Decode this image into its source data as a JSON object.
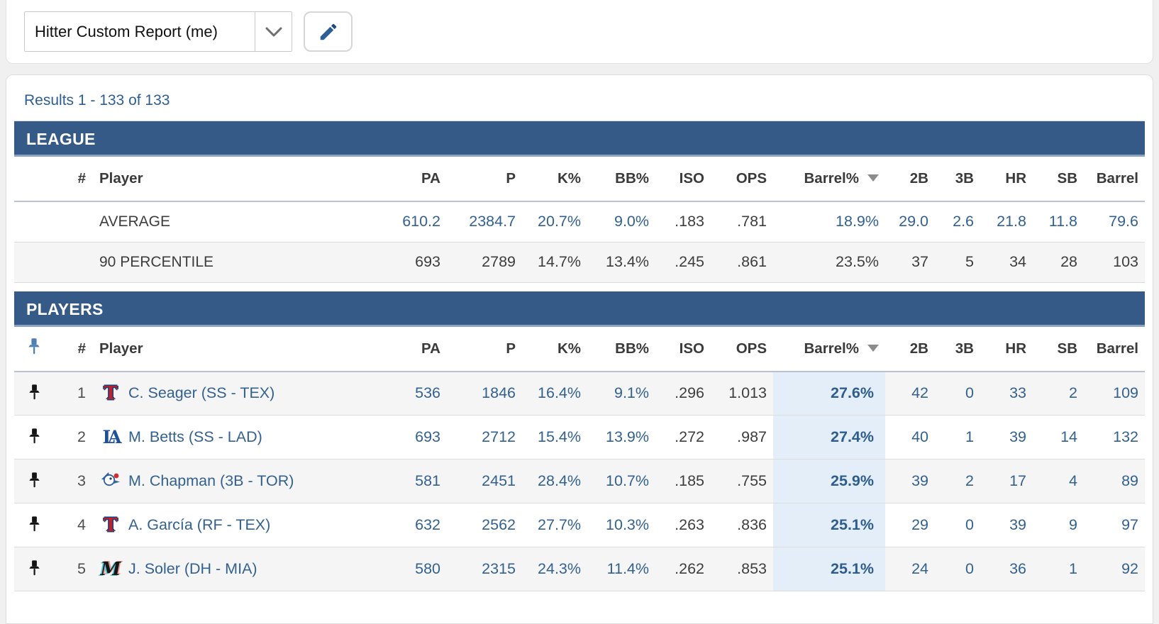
{
  "toolbar": {
    "report_name": "Hitter Custom Report (me)",
    "icons": [
      "chevron-down-icon",
      "pencil-icon"
    ]
  },
  "results_text": "Results 1 - 133 of 133",
  "sorted_by": "Barrel%",
  "sort_direction": "desc",
  "colors": {
    "section_bar": "#365A88",
    "section_bar_edge": "#8BA2C0",
    "accent_blue": "#33618F",
    "results_link": "#2D5E91",
    "barrel_highlight_bg": "#E4EEF8",
    "stripe_bg": "#F5F5F6",
    "header_pin": "#4D7FB2",
    "row_pin": "#141414"
  },
  "columns": [
    "#",
    "Player",
    "PA",
    "P",
    "K%",
    "BB%",
    "ISO",
    "OPS",
    "Barrel%",
    "2B",
    "3B",
    "HR",
    "SB",
    "Barrel"
  ],
  "league": {
    "title": "LEAGUE",
    "rows": [
      {
        "label": "AVERAGE",
        "values": [
          "610.2",
          "2384.7",
          "20.7%",
          "9.0%",
          ".183",
          ".781",
          "18.9%",
          "29.0",
          "2.6",
          "21.8",
          "11.8",
          "79.6"
        ]
      },
      {
        "label": "90 PERCENTILE",
        "values": [
          "693",
          "2789",
          "14.7%",
          "13.4%",
          ".245",
          ".861",
          "23.5%",
          "37",
          "5",
          "34",
          "28",
          "103"
        ]
      }
    ]
  },
  "players": {
    "title": "PLAYERS",
    "pin_icon": "pushpin-icon",
    "rows": [
      {
        "rank": "1",
        "logo": "rangers-logo",
        "name": "C. Seager (SS - TEX)",
        "values": [
          "536",
          "1846",
          "16.4%",
          "9.1%",
          ".296",
          "1.013",
          "27.6%",
          "42",
          "0",
          "33",
          "2",
          "109"
        ]
      },
      {
        "rank": "2",
        "logo": "dodgers-logo",
        "name": "M. Betts (SS - LAD)",
        "values": [
          "693",
          "2712",
          "15.4%",
          "13.9%",
          ".272",
          ".987",
          "27.4%",
          "40",
          "1",
          "39",
          "14",
          "132"
        ]
      },
      {
        "rank": "3",
        "logo": "bluejays-logo",
        "name": "M. Chapman (3B - TOR)",
        "values": [
          "581",
          "2451",
          "28.4%",
          "10.7%",
          ".185",
          ".755",
          "25.9%",
          "39",
          "2",
          "17",
          "4",
          "89"
        ]
      },
      {
        "rank": "4",
        "logo": "rangers-logo",
        "name": "A. García (RF - TEX)",
        "values": [
          "632",
          "2562",
          "27.7%",
          "10.3%",
          ".263",
          ".836",
          "25.1%",
          "29",
          "0",
          "39",
          "9",
          "97"
        ]
      },
      {
        "rank": "5",
        "logo": "marlins-logo",
        "name": "J. Soler (DH - MIA)",
        "values": [
          "580",
          "2315",
          "24.3%",
          "11.4%",
          ".262",
          ".853",
          "25.1%",
          "24",
          "0",
          "36",
          "1",
          "92"
        ]
      }
    ]
  }
}
